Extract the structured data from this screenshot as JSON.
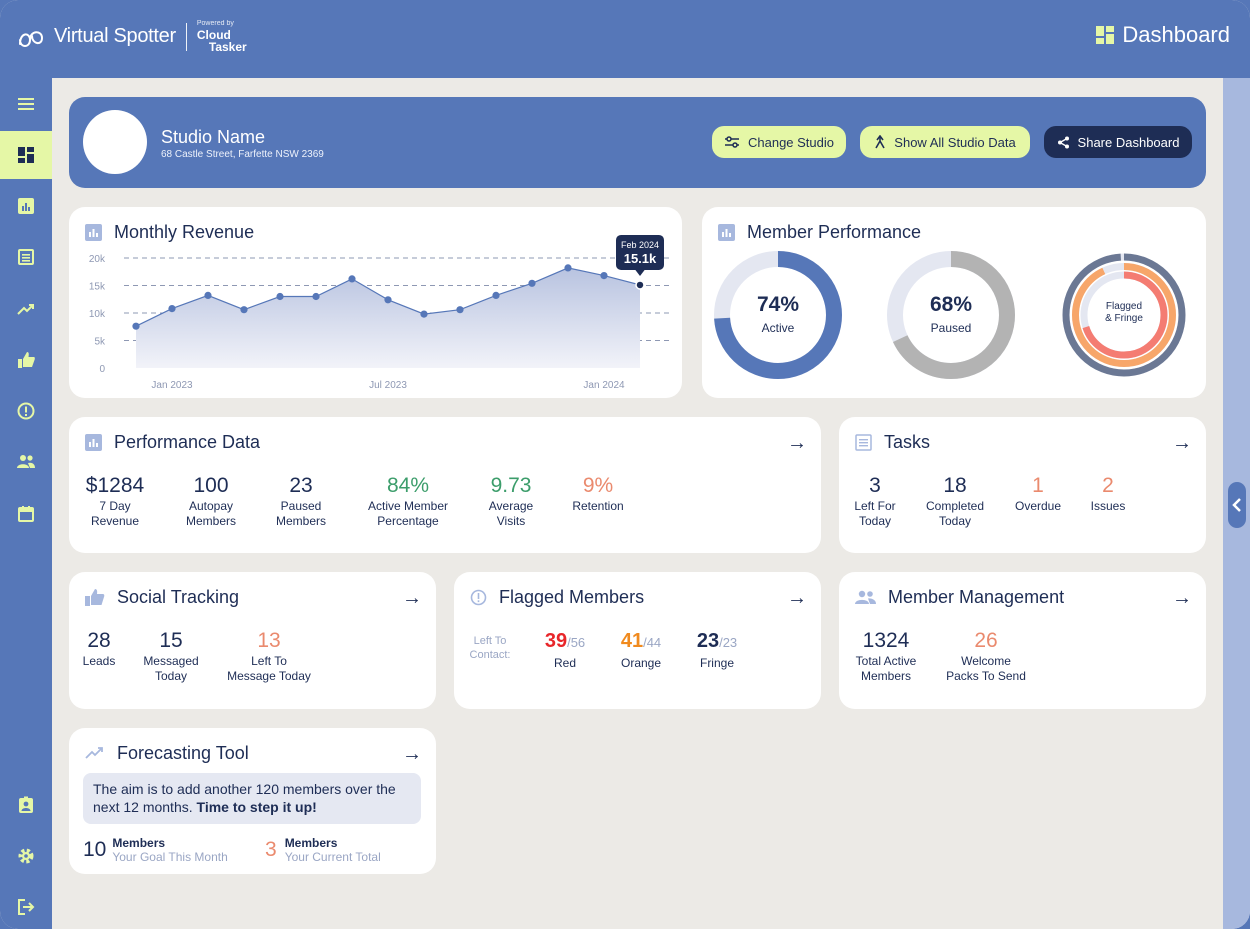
{
  "header": {
    "brand": "Virtual Spotter",
    "powered_by": "Powered by",
    "cloud": "Cloud",
    "tasker": "Tasker",
    "page_title": "Dashboard"
  },
  "studio": {
    "name": "Studio Name",
    "address": "68 Castle Street, Farfette NSW 2369",
    "buttons": {
      "change": "Change Studio",
      "show_all": "Show All Studio Data",
      "share": "Share Dashboard"
    }
  },
  "revenue": {
    "title": "Monthly Revenue",
    "tooltip": {
      "label": "Feb 2024",
      "value": "15.1k"
    }
  },
  "chart_data": {
    "type": "area",
    "title": "Monthly Revenue",
    "x": [
      "Dec 2022",
      "Jan 2023",
      "Feb 2023",
      "Mar 2023",
      "Apr 2023",
      "May 2023",
      "Jun 2023",
      "Jul 2023",
      "Aug 2023",
      "Sep 2023",
      "Oct 2023",
      "Nov 2023",
      "Dec 2023",
      "Jan 2024",
      "Feb 2024"
    ],
    "values": [
      7600,
      10800,
      13200,
      10600,
      13000,
      13000,
      16200,
      12400,
      9800,
      10600,
      13200,
      15400,
      18200,
      16800,
      15100
    ],
    "ylim": [
      0,
      20000
    ],
    "y_ticks": [
      "0",
      "5k",
      "10k",
      "15k",
      "20k"
    ],
    "x_tick_labels": [
      {
        "label": "Jan 2023",
        "index": 1
      },
      {
        "label": "Jul 2023",
        "index": 7
      },
      {
        "label": "Jan 2024",
        "index": 13
      }
    ],
    "grid": true,
    "highlight_index": 14
  },
  "member_performance": {
    "title": "Member Performance",
    "active": {
      "value": "74%",
      "label": "Active",
      "fraction": 0.74,
      "color": "#5677b8"
    },
    "paused": {
      "value": "68%",
      "label": "Paused",
      "fraction": 0.68,
      "color": "#b3b3b3"
    },
    "flagged": {
      "label1": "Flagged",
      "label2": "& Fringe"
    }
  },
  "performance_data": {
    "title": "Performance Data",
    "stats": [
      {
        "value": "$1284",
        "label1": "7 Day",
        "label2": "Revenue",
        "color": "navy"
      },
      {
        "value": "100",
        "label1": "Autopay",
        "label2": "Members",
        "color": "navy"
      },
      {
        "value": "23",
        "label1": "Paused",
        "label2": "Members",
        "color": "navy"
      },
      {
        "value": "84%",
        "label1": "Active Member",
        "label2": "Percentage",
        "color": "green"
      },
      {
        "value": "9.73",
        "label1": "Average",
        "label2": "Visits",
        "color": "green"
      },
      {
        "value": "9%",
        "label1": "Retention",
        "label2": "",
        "color": "salmon"
      }
    ]
  },
  "tasks": {
    "title": "Tasks",
    "stats": [
      {
        "value": "3",
        "label1": "Left For",
        "label2": "Today"
      },
      {
        "value": "18",
        "label1": "Completed",
        "label2": "Today"
      },
      {
        "value": "1",
        "label1": "Overdue",
        "label2": ""
      },
      {
        "value": "2",
        "label1": "Issues",
        "label2": ""
      }
    ]
  },
  "social": {
    "title": "Social Tracking",
    "stats": [
      {
        "value": "28",
        "label1": "Leads",
        "label2": ""
      },
      {
        "value": "15",
        "label1": "Messaged",
        "label2": "Today"
      },
      {
        "value": "13",
        "label1": "Left To",
        "label2": "Message Today"
      }
    ]
  },
  "flagged": {
    "title": "Flagged Members",
    "left_label1": "Left To",
    "left_label2": "Contact:",
    "red": {
      "value": "39",
      "of": "/56",
      "label": "Red"
    },
    "orange": {
      "value": "41",
      "of": "/44",
      "label": "Orange"
    },
    "fringe": {
      "value": "23",
      "of": "/23",
      "label": "Fringe"
    }
  },
  "member_management": {
    "title": "Member Management",
    "stats": [
      {
        "value": "1324",
        "label1": "Total Active",
        "label2": "Members"
      },
      {
        "value": "26",
        "label1": "Welcome",
        "label2": "Packs To Send"
      }
    ]
  },
  "forecasting": {
    "title": "Forecasting Tool",
    "message_normal": "The aim is to add another 120 members over the next 12 months. ",
    "message_bold": "Time to step it up!",
    "goal": {
      "value": "10",
      "title": "Members",
      "sub": "Your Goal This Month"
    },
    "current": {
      "value": "3",
      "title": "Members",
      "sub": "Your Current Total"
    }
  },
  "icons": {
    "sidebar": [
      "menu-icon",
      "dashboard-icon",
      "bar-chart-icon",
      "list-icon",
      "trending-icon",
      "thumbs-up-icon",
      "alert-icon",
      "people-icon",
      "calendar-icon",
      "badge-icon",
      "gear-icon",
      "logout-icon"
    ],
    "accent_lime": "#e5f7a6",
    "brand_blue": "#5677b8",
    "navy": "#1e2d55"
  }
}
